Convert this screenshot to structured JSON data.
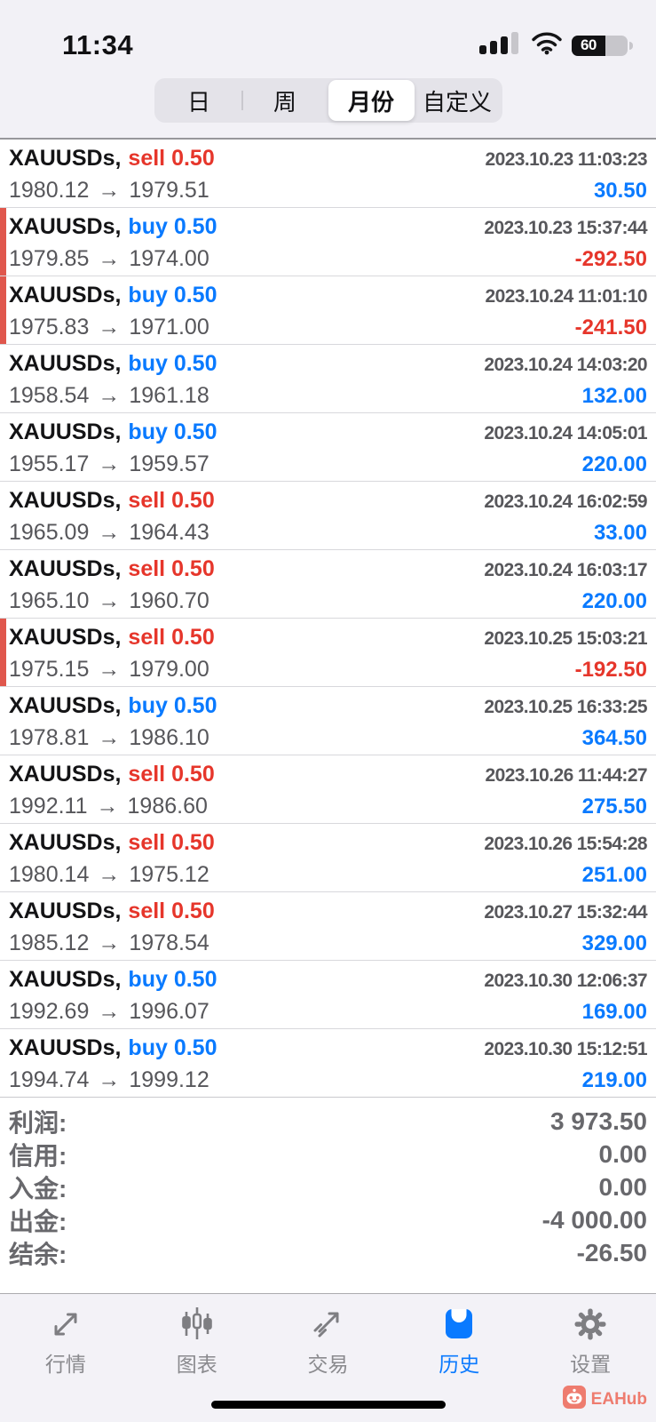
{
  "status_bar": {
    "time": "11:34",
    "battery_percent": "60"
  },
  "filter_tabs": {
    "options": [
      {
        "label": "日",
        "selected": false
      },
      {
        "label": "周",
        "selected": false
      },
      {
        "label": "月份",
        "selected": true
      },
      {
        "label": "自定义",
        "selected": false
      }
    ]
  },
  "ui": {
    "arrow": "→"
  },
  "trades": [
    {
      "symbol": "XAUUSDs,",
      "side": "sell",
      "side_label": "sell 0.50",
      "datetime": "2023.10.23 11:03:23",
      "open": "1980.12",
      "close": "1979.51",
      "profit": "30.50",
      "loss": false
    },
    {
      "symbol": "XAUUSDs,",
      "side": "buy",
      "side_label": "buy 0.50",
      "datetime": "2023.10.23 15:37:44",
      "open": "1979.85",
      "close": "1974.00",
      "profit": "-292.50",
      "loss": true
    },
    {
      "symbol": "XAUUSDs,",
      "side": "buy",
      "side_label": "buy 0.50",
      "datetime": "2023.10.24 11:01:10",
      "open": "1975.83",
      "close": "1971.00",
      "profit": "-241.50",
      "loss": true
    },
    {
      "symbol": "XAUUSDs,",
      "side": "buy",
      "side_label": "buy 0.50",
      "datetime": "2023.10.24 14:03:20",
      "open": "1958.54",
      "close": "1961.18",
      "profit": "132.00",
      "loss": false
    },
    {
      "symbol": "XAUUSDs,",
      "side": "buy",
      "side_label": "buy 0.50",
      "datetime": "2023.10.24 14:05:01",
      "open": "1955.17",
      "close": "1959.57",
      "profit": "220.00",
      "loss": false
    },
    {
      "symbol": "XAUUSDs,",
      "side": "sell",
      "side_label": "sell 0.50",
      "datetime": "2023.10.24 16:02:59",
      "open": "1965.09",
      "close": "1964.43",
      "profit": "33.00",
      "loss": false
    },
    {
      "symbol": "XAUUSDs,",
      "side": "sell",
      "side_label": "sell 0.50",
      "datetime": "2023.10.24 16:03:17",
      "open": "1965.10",
      "close": "1960.70",
      "profit": "220.00",
      "loss": false
    },
    {
      "symbol": "XAUUSDs,",
      "side": "sell",
      "side_label": "sell 0.50",
      "datetime": "2023.10.25 15:03:21",
      "open": "1975.15",
      "close": "1979.00",
      "profit": "-192.50",
      "loss": true
    },
    {
      "symbol": "XAUUSDs,",
      "side": "buy",
      "side_label": "buy 0.50",
      "datetime": "2023.10.25 16:33:25",
      "open": "1978.81",
      "close": "1986.10",
      "profit": "364.50",
      "loss": false
    },
    {
      "symbol": "XAUUSDs,",
      "side": "sell",
      "side_label": "sell 0.50",
      "datetime": "2023.10.26 11:44:27",
      "open": "1992.11",
      "close": "1986.60",
      "profit": "275.50",
      "loss": false
    },
    {
      "symbol": "XAUUSDs,",
      "side": "sell",
      "side_label": "sell 0.50",
      "datetime": "2023.10.26 15:54:28",
      "open": "1980.14",
      "close": "1975.12",
      "profit": "251.00",
      "loss": false
    },
    {
      "symbol": "XAUUSDs,",
      "side": "sell",
      "side_label": "sell 0.50",
      "datetime": "2023.10.27 15:32:44",
      "open": "1985.12",
      "close": "1978.54",
      "profit": "329.00",
      "loss": false
    },
    {
      "symbol": "XAUUSDs,",
      "side": "buy",
      "side_label": "buy 0.50",
      "datetime": "2023.10.30 12:06:37",
      "open": "1992.69",
      "close": "1996.07",
      "profit": "169.00",
      "loss": false
    },
    {
      "symbol": "XAUUSDs,",
      "side": "buy",
      "side_label": "buy 0.50",
      "datetime": "2023.10.30 15:12:51",
      "open": "1994.74",
      "close": "1999.12",
      "profit": "219.00",
      "loss": false
    }
  ],
  "summary": {
    "rows": [
      {
        "label": "利润:",
        "value": "3 973.50"
      },
      {
        "label": "信用:",
        "value": "0.00"
      },
      {
        "label": "入金:",
        "value": "0.00"
      },
      {
        "label": "出金:",
        "value": "-4 000.00"
      },
      {
        "label": "结余:",
        "value": "-26.50"
      }
    ]
  },
  "tab_bar": {
    "items": [
      {
        "label": "行情",
        "icon": "quotes-icon",
        "active": false
      },
      {
        "label": "图表",
        "icon": "charts-icon",
        "active": false
      },
      {
        "label": "交易",
        "icon": "trade-icon",
        "active": false
      },
      {
        "label": "历史",
        "icon": "history-icon",
        "active": true
      },
      {
        "label": "设置",
        "icon": "settings-icon",
        "active": false
      }
    ]
  },
  "watermark": {
    "text": "EAHub"
  },
  "colors": {
    "accent_blue": "#0a7aff",
    "loss_red": "#e6362b",
    "loss_bar_red": "#e0574d",
    "watermark_coral": "#ee7c6f"
  }
}
